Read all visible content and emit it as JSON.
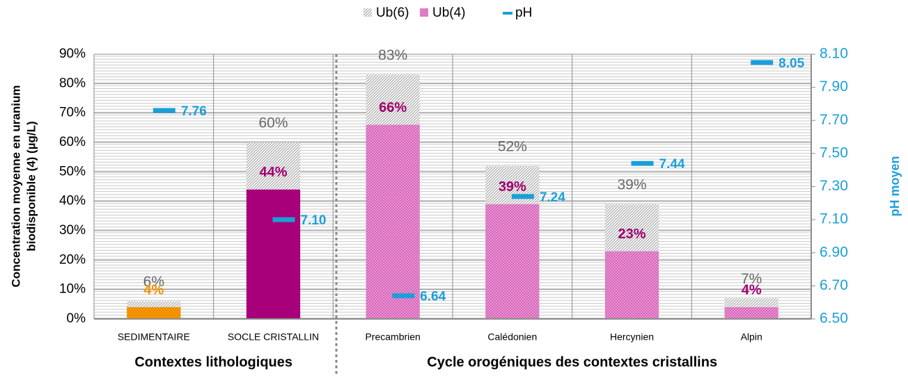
{
  "chart_data": {
    "type": "bar",
    "categories": [
      "SEDIMENTAIRE",
      "SOCLE CRISTALLIN",
      "Precambrien",
      "Calédonien",
      "Hercynien",
      "Alpin"
    ],
    "series": [
      {
        "name": "Ub(6)",
        "color": "#9a9a9a",
        "pattern": "hatch",
        "values": [
          6,
          60,
          83,
          52,
          39,
          7
        ],
        "value_labels": [
          "6%",
          "60%",
          "83%",
          "52%",
          "39%",
          "7%"
        ],
        "label_colors": [
          "#666666",
          "#666666",
          "#666666",
          "#666666",
          "#666666",
          "#666666"
        ]
      },
      {
        "name": "Ub(4)",
        "color": "#d660b9",
        "pattern": "checker",
        "colors": [
          "#f39200",
          "#a8007a",
          "#d660b9",
          "#d660b9",
          "#d660b9",
          "#d660b9"
        ],
        "values": [
          4,
          44,
          66,
          39,
          23,
          4
        ],
        "value_labels": [
          "4%",
          "44%",
          "66%",
          "39%",
          "23%",
          "4%"
        ],
        "label_colors": [
          "#f39200",
          "#a3006f",
          "#a3006f",
          "#a3006f",
          "#a3006f",
          "#a3006f"
        ]
      },
      {
        "name": "pH",
        "color": "#1a9fd9",
        "axis": "y2",
        "type": "marker",
        "values": [
          7.76,
          7.1,
          6.64,
          7.24,
          7.44,
          8.05
        ],
        "value_labels": [
          "7.76",
          "7.10",
          "6.64",
          "7.24",
          "7.44",
          "8.05"
        ]
      }
    ],
    "ylabel": [
      "Concentration moyenne en uranium",
      "biodisponible (4) (µg/L)"
    ],
    "y2label": "pH moyen",
    "annotations": [
      "Contextes lithologiques",
      "Cycle orogéniques des contextes cristallins"
    ],
    "ylim": [
      0,
      90
    ],
    "yticks": [
      {
        "value": 0,
        "label": "0%"
      },
      {
        "value": 10,
        "label": "10%"
      },
      {
        "value": 20,
        "label": "20%"
      },
      {
        "value": 30,
        "label": "30%"
      },
      {
        "value": 40,
        "label": "40%"
      },
      {
        "value": 50,
        "label": "50%"
      },
      {
        "value": 60,
        "label": "60%"
      },
      {
        "value": 70,
        "label": "70%"
      },
      {
        "value": 80,
        "label": "80%"
      },
      {
        "value": 90,
        "label": "90%"
      }
    ],
    "y2lim": [
      6.5,
      8.1
    ],
    "y2ticks": [
      {
        "value": 6.5,
        "label": "6.50"
      },
      {
        "value": 6.7,
        "label": "6.70"
      },
      {
        "value": 6.9,
        "label": "6.90"
      },
      {
        "value": 7.1,
        "label": "7.10"
      },
      {
        "value": 7.3,
        "label": "7.30"
      },
      {
        "value": 7.5,
        "label": "7.50"
      },
      {
        "value": 7.7,
        "label": "7.70"
      },
      {
        "value": 7.9,
        "label": "7.90"
      },
      {
        "value": 8.1,
        "label": "8.10"
      }
    ],
    "grid": true,
    "legend": "top"
  }
}
